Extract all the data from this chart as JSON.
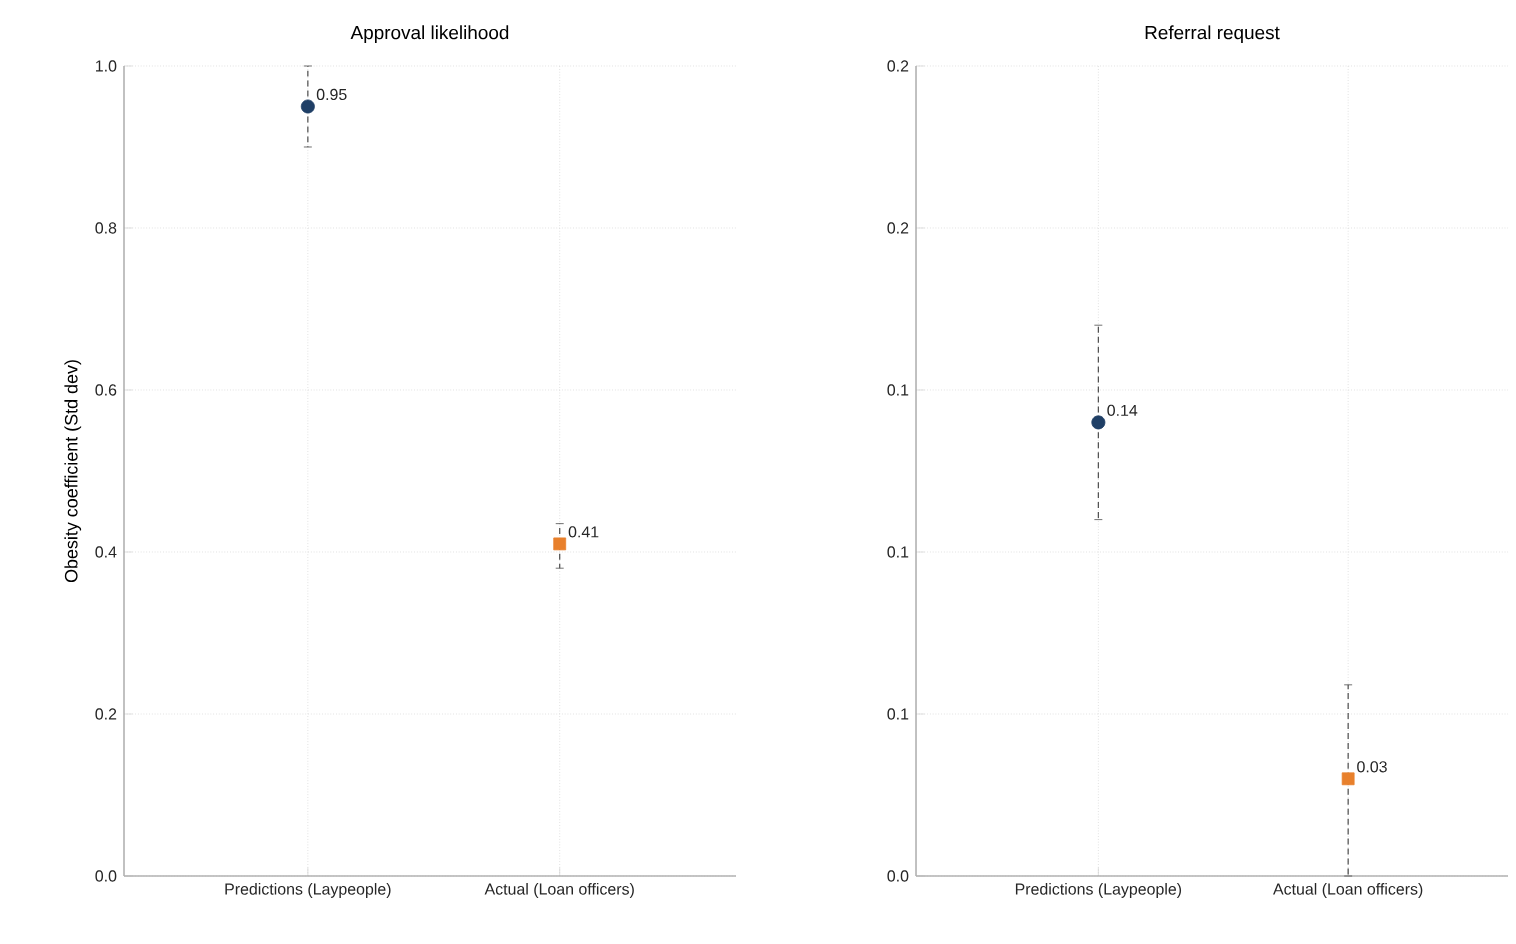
{
  "chart_data": [
    {
      "type": "scatter",
      "title": "Approval likelihood",
      "ylabel": "Obesity coefficient (Std dev)",
      "categories": [
        "Predictions (Laypeople)",
        "Actual (Loan officers)"
      ],
      "series": [
        {
          "color": "#1f3f66",
          "marker": "circle",
          "values": [
            0.95,
            null
          ],
          "errors": [
            [
              0.9,
              1.0
            ],
            null
          ]
        },
        {
          "color": "#e8802c",
          "marker": "square",
          "values": [
            null,
            0.41
          ],
          "errors": [
            null,
            [
              0.38,
              0.435
            ]
          ]
        }
      ],
      "ylim": [
        0,
        1
      ],
      "yticks": [
        {
          "value": 0,
          "label": "0.0"
        },
        {
          "value": 0.2,
          "label": "0.2"
        },
        {
          "value": 0.4,
          "label": "0.4"
        },
        {
          "value": 0.6,
          "label": "0.6"
        },
        {
          "value": 0.8,
          "label": "0.8"
        },
        {
          "value": 1,
          "label": "1.0"
        }
      ],
      "grid": true,
      "data_labels": true
    },
    {
      "type": "scatter",
      "title": "Referral request",
      "categories": [
        "Predictions (Laypeople)",
        "Actual (Loan officers)"
      ],
      "series": [
        {
          "color": "#1f3f66",
          "marker": "circle",
          "values": [
            0.14,
            null
          ],
          "errors": [
            [
              0.11,
              0.17
            ],
            null
          ]
        },
        {
          "color": "#e8802c",
          "marker": "square",
          "values": [
            null,
            0.03
          ],
          "errors": [
            null,
            [
              0.0,
              0.059
            ]
          ]
        }
      ],
      "ylim": [
        0,
        0.25
      ],
      "yticks": [
        {
          "value": 0,
          "label": "0.0"
        },
        {
          "value": 0.05,
          "label": "0.1"
        },
        {
          "value": 0.1,
          "label": "0.1"
        },
        {
          "value": 0.15,
          "label": "0.1"
        },
        {
          "value": 0.2,
          "label": "0.2"
        },
        {
          "value": 0.25,
          "label": "0.2"
        }
      ],
      "grid": true,
      "data_labels": true
    }
  ]
}
